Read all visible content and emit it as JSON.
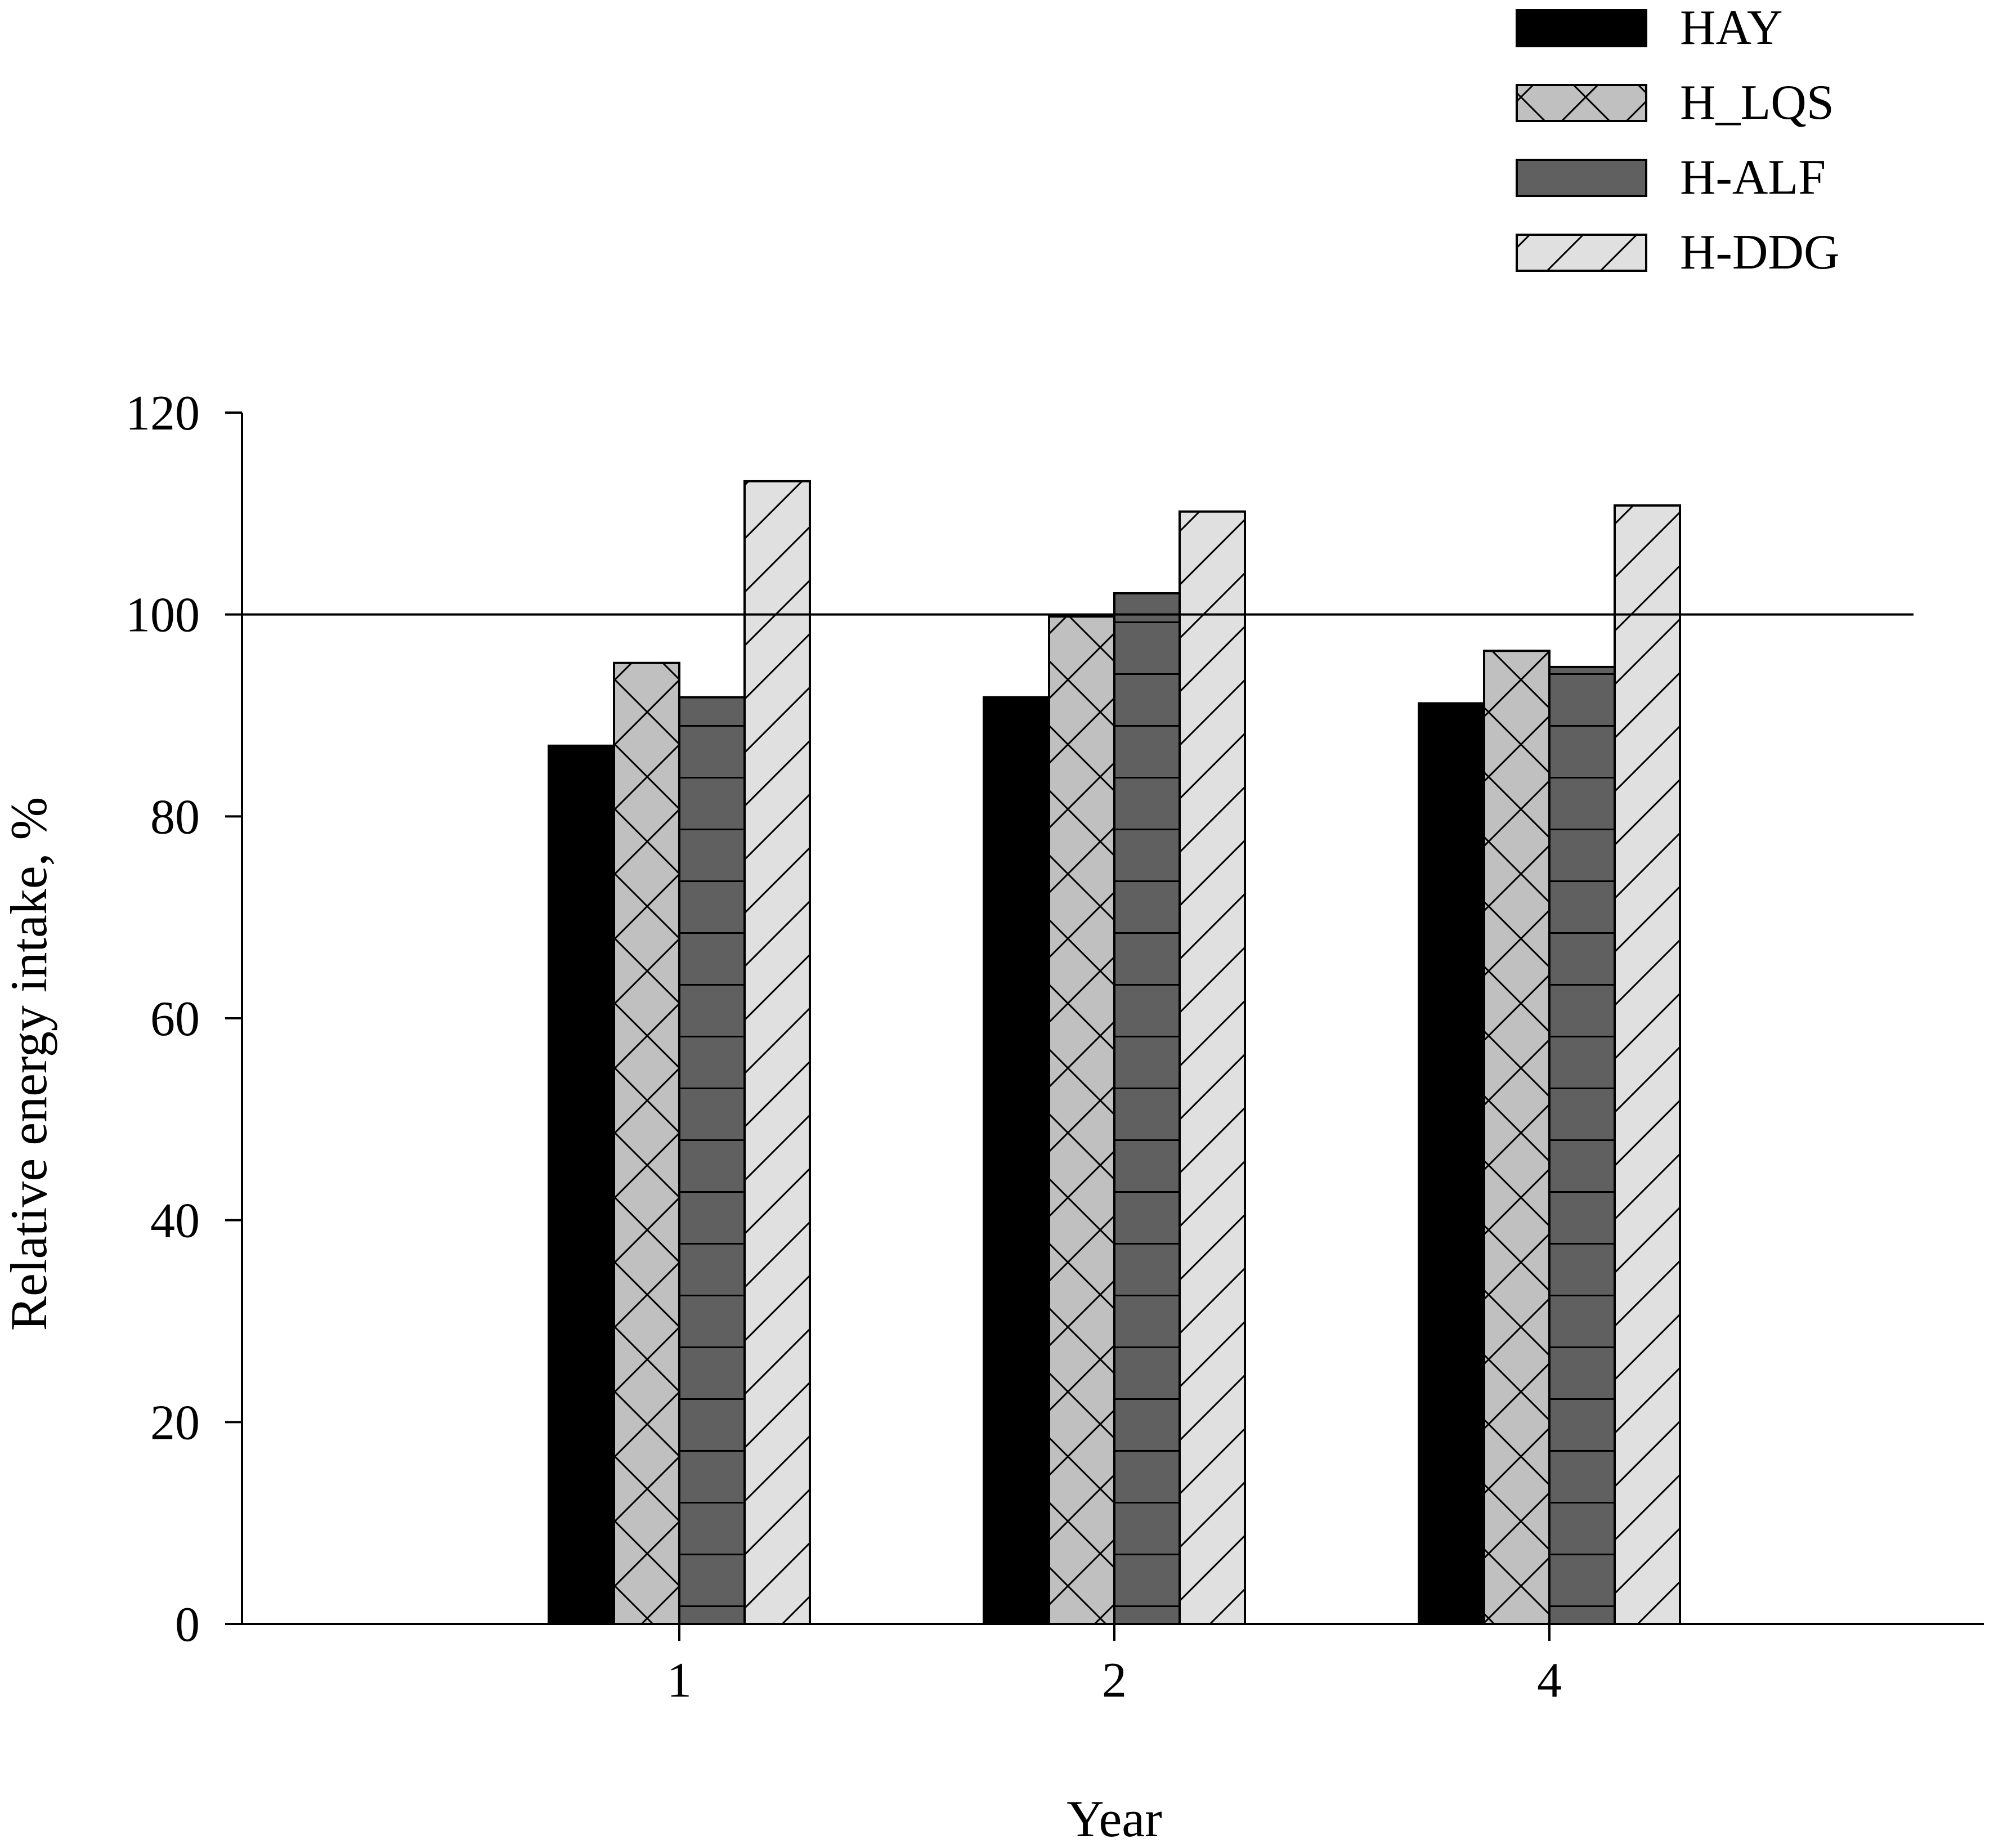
{
  "chart_data": {
    "type": "bar",
    "title": "",
    "xlabel": "Year",
    "ylabel": "Relative energy intake, %",
    "categories": [
      "1",
      "2",
      "4"
    ],
    "ylim": [
      0,
      120
    ],
    "yticks": [
      0,
      20,
      40,
      60,
      80,
      100,
      120
    ],
    "grid": false,
    "reference_line": 100,
    "legend_position": "top-right",
    "series": [
      {
        "name": "HAY",
        "values": [
          87,
          91.8,
          91.2
        ],
        "pattern": "solid",
        "color": "#000000"
      },
      {
        "name": "H_LQS",
        "values": [
          95.2,
          99.8,
          96.4
        ],
        "pattern": "crosshatch",
        "color": "#c0c0c0"
      },
      {
        "name": "H-ALF",
        "values": [
          91.8,
          102.1,
          94.8
        ],
        "pattern": "horizontal",
        "color": "#606060"
      },
      {
        "name": "H-DDG",
        "values": [
          113.2,
          110.2,
          110.8
        ],
        "pattern": "diagonal",
        "color": "#e0e0e0"
      }
    ]
  }
}
